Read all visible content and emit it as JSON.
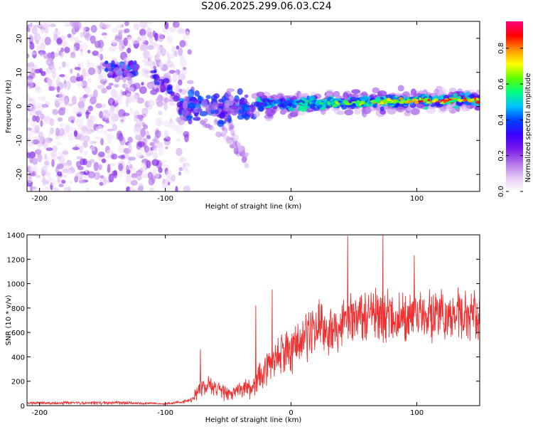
{
  "title": "S206.2025.299.06.03.C24",
  "chart_data": [
    {
      "type": "heatmap",
      "title": "S206.2025.299.06.03.C24",
      "xlabel": "Height of straight line (km)",
      "ylabel": "Frequency (Hz)",
      "xlim": [
        -210,
        150
      ],
      "ylim": [
        -25,
        25
      ],
      "xticks": [
        -200,
        -100,
        0,
        100
      ],
      "yticks": [
        -20,
        -10,
        0,
        10,
        20
      ],
      "colorbar": {
        "label": "Normalized spectral amplitude",
        "range": [
          0,
          0.95
        ],
        "ticks": [
          0.0,
          0.2,
          0.4,
          0.6,
          0.8
        ],
        "colors": [
          "#ffffff",
          "#e4c8f4",
          "#b070e8",
          "#7a18e8",
          "#3a00ff",
          "#0040ff",
          "#00c0ff",
          "#00ff80",
          "#60ff00",
          "#ffff00",
          "#ff9000",
          "#ff0000",
          "#ff0080"
        ]
      },
      "features": [
        {
          "name": "scattered background",
          "x": [
            -210,
            -100
          ],
          "freq": [
            -25,
            25
          ],
          "amplitude": 0.1
        },
        {
          "name": "upper cluster",
          "x": [
            -148,
            -122
          ],
          "freq": [
            9,
            13
          ],
          "amplitude": 0.35
        },
        {
          "name": "descending arc",
          "x": [
            -110,
            -80
          ],
          "freq_start": 10,
          "freq_end": -3,
          "amplitude": 0.3
        },
        {
          "name": "blob cluster",
          "x": [
            -88,
            -28
          ],
          "freq": [
            -5,
            5
          ],
          "amplitude": 0.35
        },
        {
          "name": "lower branches",
          "x": [
            -75,
            -35
          ],
          "freq_start": -3,
          "freq_end": -17,
          "amplitude": 0.15
        },
        {
          "name": "main band",
          "x": [
            -28,
            150
          ],
          "freq_start": 0.5,
          "freq_end": 2,
          "amplitude": 0.9
        }
      ]
    },
    {
      "type": "line",
      "xlabel": "Height of straight line (km)",
      "ylabel": "SNR (10 * v/v)",
      "xlim": [
        -210,
        150
      ],
      "ylim": [
        0,
        1400
      ],
      "xticks": [
        -200,
        -100,
        0,
        100
      ],
      "yticks": [
        0,
        200,
        400,
        600,
        800,
        1000,
        1200,
        1400
      ],
      "series_color": "#ee3030",
      "envelope": {
        "x": [
          -210,
          -140,
          -100,
          -80,
          -70,
          -50,
          -40,
          -30,
          -20,
          -10,
          0,
          20,
          40,
          60,
          80,
          100,
          120,
          150
        ],
        "mean": [
          20,
          25,
          15,
          40,
          170,
          100,
          130,
          160,
          300,
          410,
          480,
          620,
          700,
          760,
          720,
          760,
          740,
          760
        ],
        "amp": [
          15,
          18,
          10,
          20,
          110,
          70,
          90,
          120,
          160,
          200,
          230,
          250,
          280,
          280,
          270,
          260,
          250,
          240
        ]
      },
      "peaks": [
        {
          "x": -72,
          "y": 460
        },
        {
          "x": -28,
          "y": 820
        },
        {
          "x": -15,
          "y": 950
        },
        {
          "x": 45,
          "y": 1390
        },
        {
          "x": 73,
          "y": 1400
        },
        {
          "x": 98,
          "y": 1230
        }
      ]
    }
  ]
}
